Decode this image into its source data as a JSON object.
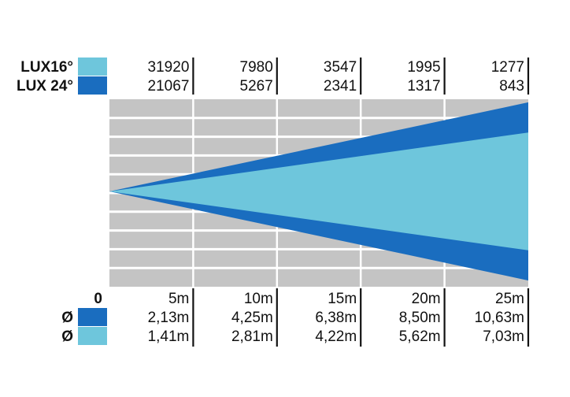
{
  "colors": {
    "beam_16": "#6ec6dc",
    "beam_24": "#1a6dbf",
    "grid_bg": "#c4c4c4",
    "grid_line": "#ffffff"
  },
  "chart_data": {
    "type": "beam-diagram",
    "lux_rows": [
      {
        "label": "LUX16°",
        "color": "#6ec6dc",
        "values": [
          "31920",
          "7980",
          "3547",
          "1995",
          "1277"
        ]
      },
      {
        "label": "LUX 24°",
        "color": "#1a6dbf",
        "values": [
          "21067",
          "5267",
          "2341",
          "1317",
          "843"
        ]
      }
    ],
    "origin_label": "0",
    "distances": [
      "5m",
      "10m",
      "15m",
      "20m",
      "25m"
    ],
    "distances_m": [
      5,
      10,
      15,
      20,
      25
    ],
    "diameter_rows": [
      {
        "label": "Ø",
        "color": "#1a6dbf",
        "values": [
          "2,13m",
          "4,25m",
          "6,38m",
          "8,50m",
          "10,63m"
        ]
      },
      {
        "label": "Ø",
        "color": "#6ec6dc",
        "values": [
          "1,41m",
          "2,81m",
          "4,22m",
          "5,62m",
          "7,03m"
        ]
      }
    ],
    "beam_angles_deg": [
      24,
      16
    ]
  }
}
